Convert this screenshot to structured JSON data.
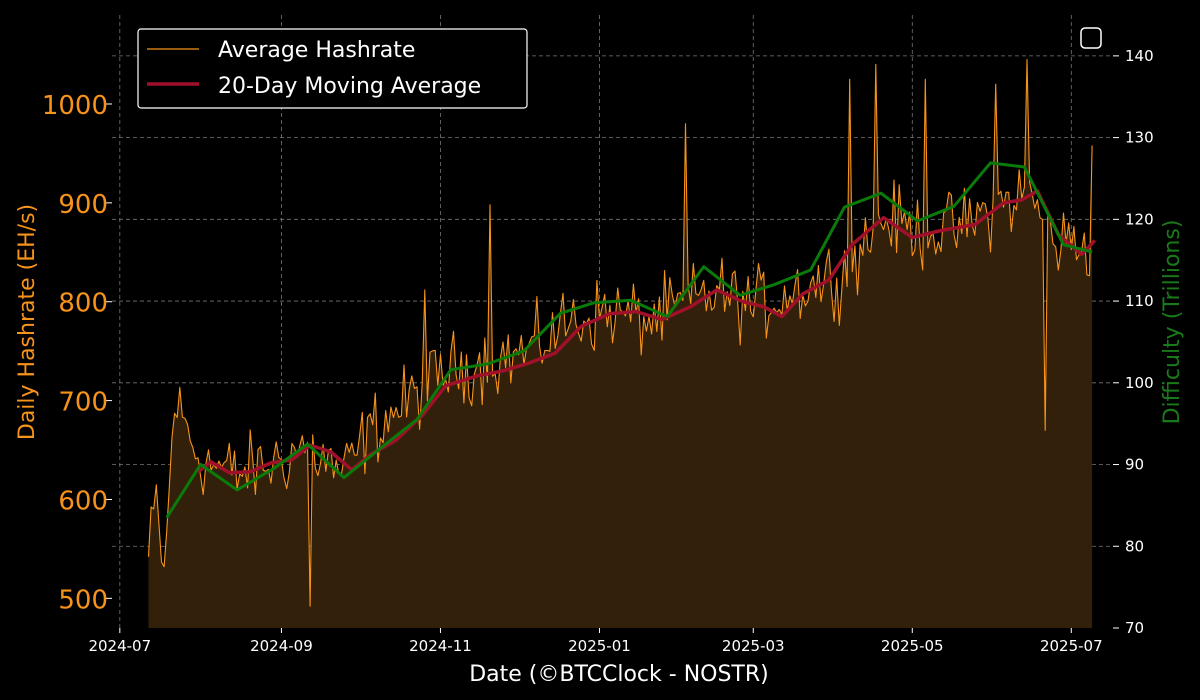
{
  "colors": {
    "background": "#000000",
    "hashrate": "#f7931a",
    "hashrate_fill": "#33200a",
    "moving_average": "#a0102a",
    "difficulty": "#0a7a0a",
    "grid": "#777777",
    "text": "#ffffff"
  },
  "chart_data": {
    "type": "line",
    "xlabel": "Date (©BTCClock - NOSTR)",
    "ylabel": "Daily Hashrate (EH/s)",
    "y2label": "Difficulty (Trillions)",
    "ylim": [
      470,
      1090
    ],
    "y2lim": [
      70,
      145
    ],
    "xlim": [
      "2024-06-28",
      "2025-07-17"
    ],
    "x_ticks": [
      "2024-07",
      "2024-09",
      "2024-11",
      "2025-01",
      "2025-03",
      "2025-05",
      "2025-07"
    ],
    "y_ticks": [
      500,
      600,
      700,
      800,
      900,
      1000
    ],
    "y2_ticks": [
      70,
      80,
      90,
      100,
      110,
      120,
      130,
      140
    ],
    "grid": true,
    "legend_position": "top-left",
    "legend": [
      "Average Hashrate",
      "20-Day Moving Average"
    ],
    "hashrate_anchors": [
      [
        "2024-07-12",
        542
      ],
      [
        "2024-07-15",
        600
      ],
      [
        "2024-07-18",
        520
      ],
      [
        "2024-07-22",
        700
      ],
      [
        "2024-08-01",
        640
      ],
      [
        "2024-08-15",
        625
      ],
      [
        "2024-09-01",
        640
      ],
      [
        "2024-09-10",
        655
      ],
      [
        "2024-09-25",
        625
      ],
      [
        "2024-10-05",
        670
      ],
      [
        "2024-10-20",
        700
      ],
      [
        "2024-11-03",
        730
      ],
      [
        "2024-11-20",
        740
      ],
      [
        "2024-12-05",
        750
      ],
      [
        "2024-12-20",
        780
      ],
      [
        "2025-01-05",
        790
      ],
      [
        "2025-01-20",
        780
      ],
      [
        "2025-02-05",
        800
      ],
      [
        "2025-02-15",
        810
      ],
      [
        "2025-03-01",
        795
      ],
      [
        "2025-03-20",
        815
      ],
      [
        "2025-04-05",
        830
      ],
      [
        "2025-04-20",
        885
      ],
      [
        "2025-05-05",
        870
      ],
      [
        "2025-05-20",
        875
      ],
      [
        "2025-06-05",
        900
      ],
      [
        "2025-06-15",
        910
      ],
      [
        "2025-06-25",
        860
      ],
      [
        "2025-07-09",
        860
      ]
    ],
    "hashrate_volatility": 55,
    "hashrate_extremes": [
      [
        "2024-09-12",
        492
      ],
      [
        "2024-10-26",
        812
      ],
      [
        "2024-11-20",
        898
      ],
      [
        "2025-02-03",
        980
      ],
      [
        "2025-04-07",
        1025
      ],
      [
        "2025-04-17",
        1040
      ],
      [
        "2025-05-06",
        1025
      ],
      [
        "2025-06-02",
        1020
      ],
      [
        "2025-06-14",
        1045
      ],
      [
        "2025-06-21",
        670
      ],
      [
        "2025-07-09",
        958
      ]
    ],
    "moving_average": [
      [
        "2024-07-31",
        628
      ],
      [
        "2024-08-05",
        638
      ],
      [
        "2024-08-12",
        627
      ],
      [
        "2024-08-20",
        628
      ],
      [
        "2024-08-28",
        637
      ],
      [
        "2024-09-05",
        640
      ],
      [
        "2024-09-12",
        655
      ],
      [
        "2024-09-20",
        648
      ],
      [
        "2024-09-28",
        630
      ],
      [
        "2024-10-05",
        645
      ],
      [
        "2024-10-15",
        660
      ],
      [
        "2024-10-25",
        685
      ],
      [
        "2024-11-03",
        715
      ],
      [
        "2024-11-15",
        725
      ],
      [
        "2024-11-25",
        730
      ],
      [
        "2024-12-05",
        738
      ],
      [
        "2024-12-15",
        748
      ],
      [
        "2024-12-25",
        775
      ],
      [
        "2025-01-05",
        788
      ],
      [
        "2025-01-15",
        790
      ],
      [
        "2025-01-25",
        782
      ],
      [
        "2025-02-05",
        795
      ],
      [
        "2025-02-15",
        812
      ],
      [
        "2025-02-25",
        800
      ],
      [
        "2025-03-05",
        795
      ],
      [
        "2025-03-12",
        785
      ],
      [
        "2025-03-20",
        808
      ],
      [
        "2025-03-30",
        822
      ],
      [
        "2025-04-08",
        858
      ],
      [
        "2025-04-20",
        885
      ],
      [
        "2025-05-01",
        865
      ],
      [
        "2025-05-12",
        872
      ],
      [
        "2025-05-25",
        878
      ],
      [
        "2025-06-05",
        900
      ],
      [
        "2025-06-12",
        903
      ],
      [
        "2025-06-18",
        912
      ],
      [
        "2025-06-26",
        868
      ],
      [
        "2025-07-05",
        848
      ],
      [
        "2025-07-10",
        862
      ]
    ],
    "difficulty": [
      [
        "2024-07-19",
        83.5
      ],
      [
        "2024-08-01",
        90.0
      ],
      [
        "2024-08-15",
        86.9
      ],
      [
        "2024-08-29",
        89.5
      ],
      [
        "2024-09-11",
        92.5
      ],
      [
        "2024-09-25",
        88.4
      ],
      [
        "2024-10-09",
        92.0
      ],
      [
        "2024-10-23",
        95.5
      ],
      [
        "2024-11-05",
        101.6
      ],
      [
        "2024-11-19",
        102.3
      ],
      [
        "2024-12-03",
        103.9
      ],
      [
        "2024-12-17",
        108.5
      ],
      [
        "2024-12-30",
        109.8
      ],
      [
        "2025-01-13",
        110.1
      ],
      [
        "2025-01-27",
        108.1
      ],
      [
        "2025-02-10",
        114.2
      ],
      [
        "2025-02-24",
        110.7
      ],
      [
        "2025-03-09",
        112.0
      ],
      [
        "2025-03-23",
        113.8
      ],
      [
        "2025-04-05",
        121.5
      ],
      [
        "2025-04-19",
        123.2
      ],
      [
        "2025-05-03",
        119.8
      ],
      [
        "2025-05-17",
        121.6
      ],
      [
        "2025-05-31",
        126.9
      ],
      [
        "2025-06-13",
        126.4
      ],
      [
        "2025-06-28",
        116.9
      ],
      [
        "2025-07-09",
        116.0
      ]
    ]
  }
}
